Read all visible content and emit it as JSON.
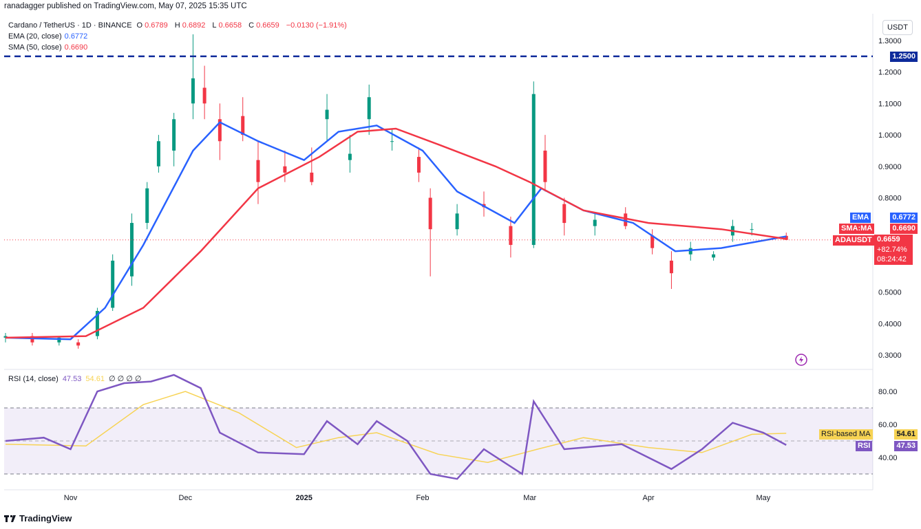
{
  "header": {
    "publisher": "ranadagger published on TradingView.com, May 07, 2025 15:35 UTC"
  },
  "legend": {
    "symbol": "Cardano / TetherUS · 1D · BINANCE",
    "o_label": "O",
    "o": "0.6789",
    "h_label": "H",
    "h": "0.6892",
    "l_label": "L",
    "l": "0.6658",
    "c_label": "C",
    "c": "0.6659",
    "change": "−0.0130 (−1.91%)",
    "ema_label": "EMA (20, close)",
    "ema_value": "0.6772",
    "sma_label": "SMA (50, close)",
    "sma_value": "0.6690"
  },
  "rsi_legend": {
    "label": "RSI (14, close)",
    "rsi_value": "47.53",
    "ma_value": "54.61",
    "extra": "∅ ∅ ∅ ∅"
  },
  "price_axis": {
    "unit": "USDT",
    "ticks": [
      "1.3000",
      "1.2000",
      "1.1000",
      "1.0000",
      "0.9000",
      "0.8000",
      "0.5000",
      "0.4000",
      "0.3000"
    ]
  },
  "rsi_axis": {
    "ticks": [
      "80.00",
      "60.00",
      "40.00"
    ]
  },
  "time_axis": {
    "labels": [
      "Nov",
      "Dec",
      "2025",
      "Feb",
      "Mar",
      "Apr",
      "May"
    ]
  },
  "tags": {
    "resistance": "1.2500",
    "ema_name": "EMA",
    "ema": "0.6772",
    "sma_name": "SMA:MA",
    "sma": "0.6690",
    "sym_name": "ADAUSDT",
    "price": "0.6659",
    "pct": "+82.74%",
    "countdown": "08:24:42",
    "rsi_ma_name": "RSI-based MA",
    "rsi_ma": "54.61",
    "rsi_name": "RSI",
    "rsi": "47.53"
  },
  "footer": {
    "brand": "TradingView"
  },
  "colors": {
    "up": "#089981",
    "down": "#f23645",
    "ema": "#2962ff",
    "sma": "#f23645",
    "rsi": "#7e57c2",
    "rsi_ma": "#f7d354",
    "level": "#0d2a9b"
  },
  "chart_data": [
    {
      "type": "candlestick",
      "title": "Cardano / TetherUS · 1D · BINANCE",
      "ylabel": "USDT",
      "ylim": [
        0.28,
        1.33
      ],
      "x_labels": [
        "Nov",
        "Dec",
        "2025",
        "Feb",
        "Mar",
        "Apr",
        "May"
      ],
      "horizontal_lines": [
        {
          "value": 1.25,
          "label": "1.2500",
          "style": "dashed"
        }
      ],
      "series": [
        {
          "name": "EMA (20, close)",
          "last": 0.6772,
          "points": [
            [
              "Oct 15",
              0.355
            ],
            [
              "Nov 1",
              0.35
            ],
            [
              "Nov 10",
              0.45
            ],
            [
              "Nov 20",
              0.65
            ],
            [
              "Dec 3",
              0.95
            ],
            [
              "Dec 10",
              1.04
            ],
            [
              "Dec 20",
              0.98
            ],
            [
              "Jan 1",
              0.92
            ],
            [
              "Jan 10",
              1.01
            ],
            [
              "Jan 20",
              1.03
            ],
            [
              "Feb 1",
              0.95
            ],
            [
              "Feb 10",
              0.82
            ],
            [
              "Feb 25",
              0.72
            ],
            [
              "Mar 4",
              0.83
            ],
            [
              "Mar 15",
              0.76
            ],
            [
              "Mar 28",
              0.72
            ],
            [
              "Apr 8",
              0.63
            ],
            [
              "Apr 20",
              0.64
            ],
            [
              "May 7",
              0.6772
            ]
          ]
        },
        {
          "name": "SMA (50, close)",
          "last": 0.669,
          "points": [
            [
              "Oct 15",
              0.355
            ],
            [
              "Nov 5",
              0.36
            ],
            [
              "Nov 20",
              0.45
            ],
            [
              "Dec 5",
              0.63
            ],
            [
              "Dec 20",
              0.83
            ],
            [
              "Jan 5",
              0.93
            ],
            [
              "Jan 15",
              1.01
            ],
            [
              "Jan 25",
              1.02
            ],
            [
              "Feb 5",
              0.97
            ],
            [
              "Feb 20",
              0.9
            ],
            [
              "Mar 1",
              0.85
            ],
            [
              "Mar 15",
              0.76
            ],
            [
              "Apr 1",
              0.72
            ],
            [
              "Apr 20",
              0.7
            ],
            [
              "May 7",
              0.669
            ]
          ]
        }
      ],
      "candles_ohlc": [
        [
          "Oct 15",
          0.355,
          0.37,
          0.34,
          0.36
        ],
        [
          "Oct 22",
          0.36,
          0.37,
          0.33,
          0.34
        ],
        [
          "Oct 29",
          0.34,
          0.36,
          0.33,
          0.355
        ],
        [
          "Nov 3",
          0.34,
          0.35,
          0.32,
          0.33
        ],
        [
          "Nov 8",
          0.36,
          0.45,
          0.35,
          0.44
        ],
        [
          "Nov 12",
          0.45,
          0.62,
          0.44,
          0.6
        ],
        [
          "Nov 17",
          0.55,
          0.75,
          0.52,
          0.72
        ],
        [
          "Nov 21",
          0.72,
          0.85,
          0.7,
          0.83
        ],
        [
          "Nov 24",
          0.9,
          1.0,
          0.88,
          0.98
        ],
        [
          "Nov 28",
          0.95,
          1.07,
          0.9,
          1.05
        ],
        [
          "Dec 3",
          1.1,
          1.32,
          1.05,
          1.18
        ],
        [
          "Dec 6",
          1.15,
          1.22,
          1.05,
          1.1
        ],
        [
          "Dec 10",
          1.05,
          1.1,
          0.92,
          0.98
        ],
        [
          "Dec 16",
          1.06,
          1.12,
          0.98,
          1.0
        ],
        [
          "Dec 20",
          0.92,
          0.98,
          0.78,
          0.85
        ],
        [
          "Dec 27",
          0.9,
          0.95,
          0.85,
          0.88
        ],
        [
          "Jan 3",
          0.88,
          0.96,
          0.84,
          0.85
        ],
        [
          "Jan 7",
          1.05,
          1.13,
          0.98,
          1.08
        ],
        [
          "Jan 13",
          0.92,
          1.0,
          0.88,
          0.94
        ],
        [
          "Jan 18",
          1.05,
          1.16,
          1.0,
          1.12
        ],
        [
          "Jan 24",
          0.98,
          1.02,
          0.95,
          0.98
        ],
        [
          "Jan 31",
          0.93,
          0.96,
          0.85,
          0.88
        ],
        [
          "Feb 3",
          0.8,
          0.83,
          0.55,
          0.7
        ],
        [
          "Feb 10",
          0.7,
          0.78,
          0.68,
          0.75
        ],
        [
          "Feb 17",
          0.78,
          0.82,
          0.74,
          0.77
        ],
        [
          "Feb 24",
          0.71,
          0.74,
          0.61,
          0.65
        ],
        [
          "Mar 2",
          0.65,
          1.17,
          0.64,
          1.13
        ],
        [
          "Mar 5",
          0.95,
          1.0,
          0.82,
          0.85
        ],
        [
          "Mar 10",
          0.78,
          0.8,
          0.68,
          0.72
        ],
        [
          "Mar 18",
          0.71,
          0.75,
          0.68,
          0.73
        ],
        [
          "Mar 26",
          0.75,
          0.77,
          0.7,
          0.71
        ],
        [
          "Apr 2",
          0.68,
          0.7,
          0.62,
          0.64
        ],
        [
          "Apr 7",
          0.6,
          0.63,
          0.51,
          0.56
        ],
        [
          "Apr 12",
          0.62,
          0.66,
          0.6,
          0.64
        ],
        [
          "Apr 18",
          0.61,
          0.63,
          0.6,
          0.62
        ],
        [
          "Apr 23",
          0.68,
          0.73,
          0.66,
          0.71
        ],
        [
          "Apr 28",
          0.7,
          0.72,
          0.68,
          0.7
        ],
        [
          "May 7",
          0.6789,
          0.6892,
          0.6658,
          0.6659
        ]
      ]
    },
    {
      "type": "line",
      "title": "RSI (14, close)",
      "ylim": [
        20,
        90
      ],
      "levels": [
        70,
        50,
        30
      ],
      "series": [
        {
          "name": "RSI",
          "last": 47.53,
          "points": [
            [
              "Oct 15",
              50
            ],
            [
              "Oct 25",
              52
            ],
            [
              "Nov 1",
              45
            ],
            [
              "Nov 8",
              80
            ],
            [
              "Nov 15",
              85
            ],
            [
              "Nov 22",
              86
            ],
            [
              "Nov 28",
              90
            ],
            [
              "Dec 5",
              82
            ],
            [
              "Dec 10",
              55
            ],
            [
              "Dec 20",
              43
            ],
            [
              "Jan 1",
              42
            ],
            [
              "Jan 7",
              62
            ],
            [
              "Jan 15",
              48
            ],
            [
              "Jan 20",
              62
            ],
            [
              "Jan 28",
              50
            ],
            [
              "Feb 3",
              30
            ],
            [
              "Feb 10",
              27
            ],
            [
              "Feb 17",
              45
            ],
            [
              "Feb 27",
              30
            ],
            [
              "Mar 2",
              74
            ],
            [
              "Mar 10",
              45
            ],
            [
              "Mar 25",
              48
            ],
            [
              "Apr 7",
              33
            ],
            [
              "Apr 15",
              45
            ],
            [
              "Apr 23",
              61
            ],
            [
              "May 1",
              55
            ],
            [
              "May 7",
              47.53
            ]
          ]
        },
        {
          "name": "RSI-based MA",
          "last": 54.61,
          "points": [
            [
              "Oct 15",
              48
            ],
            [
              "Nov 5",
              47
            ],
            [
              "Nov 20",
              72
            ],
            [
              "Dec 1",
              80
            ],
            [
              "Dec 15",
              67
            ],
            [
              "Dec 30",
              46
            ],
            [
              "Jan 10",
              52
            ],
            [
              "Jan 20",
              55
            ],
            [
              "Feb 5",
              42
            ],
            [
              "Feb 18",
              37
            ],
            [
              "Mar 3",
              45
            ],
            [
              "Mar 15",
              52
            ],
            [
              "Apr 1",
              46
            ],
            [
              "Apr 15",
              43
            ],
            [
              "Apr 28",
              54
            ],
            [
              "May 7",
              54.61
            ]
          ]
        }
      ]
    }
  ]
}
